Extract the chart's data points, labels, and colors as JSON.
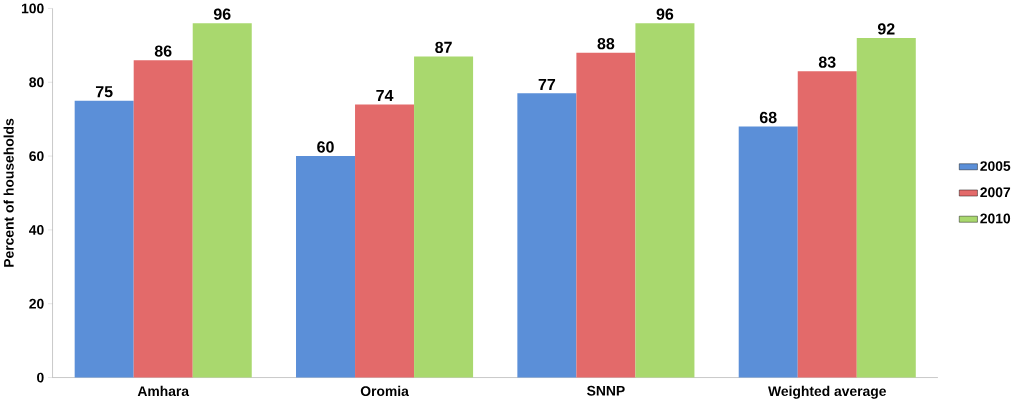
{
  "chart_data": {
    "type": "bar",
    "ylabel": "Percent of households",
    "categories": [
      "Amhara",
      "Oromia",
      "SNNP",
      "Weighted average"
    ],
    "series": [
      {
        "name": "2005",
        "color": "#5b8fd8",
        "values": [
          75,
          60,
          77,
          68
        ]
      },
      {
        "name": "2007",
        "color": "#e36a6a",
        "values": [
          86,
          74,
          88,
          83
        ]
      },
      {
        "name": "2010",
        "color": "#a9d86e",
        "values": [
          96,
          87,
          96,
          92
        ]
      }
    ],
    "ylim": [
      0,
      100
    ],
    "yticks": [
      0,
      20,
      40,
      60,
      80,
      100
    ],
    "data_labels": true,
    "legend": "right",
    "grid": false
  }
}
